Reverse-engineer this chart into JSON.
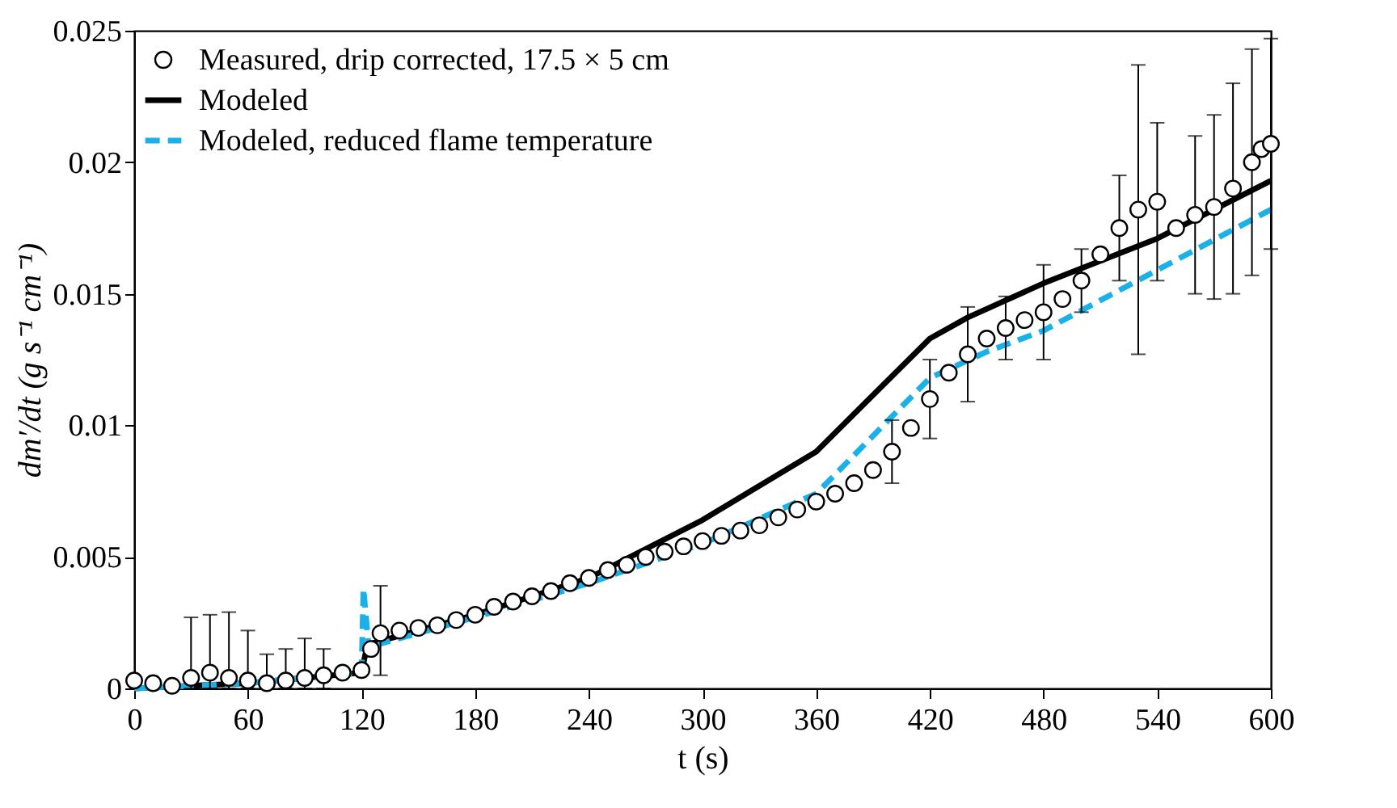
{
  "chart_data": {
    "type": "line",
    "xlabel": "t (s)",
    "ylabel": "dm′/dt (g s⁻¹ cm⁻¹)",
    "xlim": [
      0,
      600
    ],
    "xticks": [
      0,
      60,
      120,
      180,
      240,
      300,
      360,
      420,
      480,
      540,
      600
    ],
    "ylim": [
      0,
      0.025
    ],
    "yticks": [
      0,
      0.005,
      0.01,
      0.015,
      0.02,
      0.025
    ],
    "legend": "top left",
    "series": [
      {
        "name": "Measured, drip corrected, 17.5 × 5 cm",
        "type": "scatter",
        "marker": "circle",
        "color": "#000000",
        "x": [
          0,
          10,
          20,
          30,
          40,
          50,
          60,
          70,
          80,
          90,
          100,
          110,
          120,
          125,
          130,
          140,
          150,
          160,
          170,
          180,
          190,
          200,
          210,
          220,
          230,
          240,
          250,
          260,
          270,
          280,
          290,
          300,
          310,
          320,
          330,
          340,
          350,
          360,
          370,
          380,
          390,
          400,
          410,
          420,
          430,
          440,
          450,
          460,
          470,
          480,
          490,
          500,
          510,
          520,
          530,
          540,
          550,
          560,
          570,
          580,
          590,
          595,
          600
        ],
        "values": [
          0.0003,
          0.0002,
          0.0001,
          0.0004,
          0.0006,
          0.0004,
          0.0003,
          0.0002,
          0.0003,
          0.0004,
          0.0005,
          0.0006,
          0.0007,
          0.0015,
          0.0021,
          0.0022,
          0.0023,
          0.0024,
          0.0026,
          0.0028,
          0.0031,
          0.0033,
          0.0035,
          0.0037,
          0.004,
          0.0042,
          0.0045,
          0.0047,
          0.005,
          0.0052,
          0.0054,
          0.0056,
          0.0058,
          0.006,
          0.0062,
          0.0065,
          0.0068,
          0.0071,
          0.0074,
          0.0078,
          0.0083,
          0.009,
          0.0099,
          0.011,
          0.012,
          0.0127,
          0.0133,
          0.0137,
          0.014,
          0.0143,
          0.0148,
          0.0155,
          0.0165,
          0.0175,
          0.0182,
          0.0185,
          0.0175,
          0.018,
          0.0183,
          0.019,
          0.02,
          0.0205,
          0.0207
        ],
        "errors": [
          null,
          null,
          null,
          [
            0,
            0.0027
          ],
          [
            0,
            0.0028
          ],
          [
            0,
            0.0029
          ],
          [
            0,
            0.0022
          ],
          [
            0,
            0.0013
          ],
          [
            0,
            0.0015
          ],
          [
            0,
            0.0019
          ],
          [
            0,
            0.0015
          ],
          null,
          null,
          null,
          [
            0.0005,
            0.0039
          ],
          null,
          null,
          null,
          null,
          null,
          null,
          null,
          null,
          null,
          null,
          null,
          null,
          null,
          null,
          null,
          null,
          null,
          null,
          null,
          null,
          null,
          null,
          null,
          null,
          null,
          null,
          0.0012,
          null,
          0.0015,
          null,
          0.0018,
          null,
          0.0012,
          null,
          0.0018,
          null,
          0.0012,
          null,
          0.002,
          0.0055,
          0.003,
          null,
          0.003,
          0.0035,
          0.004,
          0.0043,
          null,
          0.004
        ]
      },
      {
        "name": "Modeled",
        "type": "line",
        "line_style": "solid",
        "color": "#000000",
        "x": [
          0,
          30,
          60,
          90,
          120,
          122,
          125,
          140,
          180,
          240,
          300,
          360,
          420,
          440,
          480,
          540,
          600
        ],
        "values": [
          0,
          0.0001,
          0.0002,
          0.0004,
          0.0006,
          0.0013,
          0.0017,
          0.002,
          0.0028,
          0.0042,
          0.0064,
          0.009,
          0.0133,
          0.0141,
          0.0154,
          0.0171,
          0.0193
        ]
      },
      {
        "name": "Modeled, reduced flame temperature",
        "type": "line",
        "line_style": "dashed",
        "color": "#1ab0e8",
        "x": [
          0,
          60,
          120,
          121,
          124,
          130,
          180,
          240,
          300,
          360,
          420,
          450,
          480,
          540,
          600
        ],
        "values": [
          0,
          0.0002,
          0.0006,
          0.0038,
          0.0014,
          0.0017,
          0.0027,
          0.004,
          0.0055,
          0.0074,
          0.0118,
          0.0128,
          0.0136,
          0.0159,
          0.0182
        ]
      }
    ]
  }
}
